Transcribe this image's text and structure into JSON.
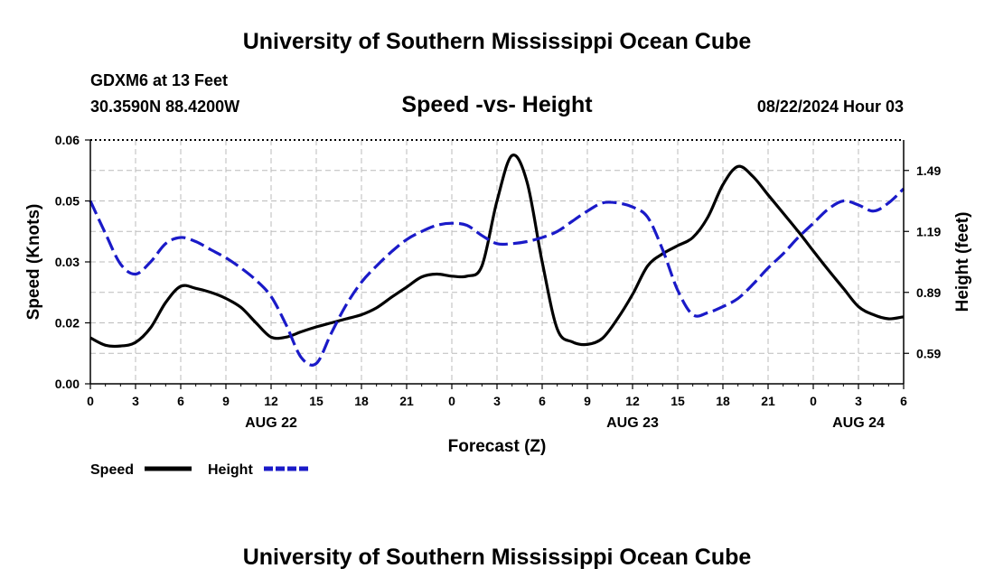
{
  "header": {
    "title": "University of Southern Mississippi Ocean Cube",
    "station": "GDXM6 at 13 Feet",
    "location": "30.3590N  88.4200W",
    "chart_title": "Speed -vs- Height",
    "datetime": "08/22/2024 Hour 03"
  },
  "footer": {
    "title": "University of Southern Mississippi Ocean Cube"
  },
  "legend": {
    "speed_label": "Speed",
    "height_label": "Height"
  },
  "colors": {
    "speed": "#000000",
    "height": "#1a1ac8",
    "grid": "#bbbbbb"
  },
  "chart_data": {
    "type": "line",
    "title": "Speed -vs- Height",
    "xlabel": "Forecast (Z)",
    "ylabel": "Speed (Knots)",
    "y2label": "Height (feet)",
    "x_range": [
      0,
      54
    ],
    "x_tick_labels": [
      "0",
      "3",
      "6",
      "9",
      "12",
      "15",
      "18",
      "21",
      "0",
      "3",
      "6",
      "9",
      "12",
      "15",
      "18",
      "21",
      "0",
      "3",
      "6"
    ],
    "date_labels": [
      {
        "text": "AUG 22",
        "x": 12
      },
      {
        "text": "AUG 23",
        "x": 36
      },
      {
        "text": "AUG 24",
        "x": 51
      }
    ],
    "ylim": [
      0,
      0.06
    ],
    "y_ticks": [
      {
        "value": 0,
        "label": "0.00"
      },
      {
        "value": 0.015,
        "label": "0.02"
      },
      {
        "value": 0.03,
        "label": "0.03"
      },
      {
        "value": 0.045,
        "label": "0.05"
      },
      {
        "value": 0.06,
        "label": "0.06"
      }
    ],
    "y2lim": [
      0.44,
      1.64
    ],
    "y2_ticks": [
      0.59,
      0.89,
      1.19,
      1.49
    ],
    "y2_tick_labels": [
      "0.59",
      "0.89",
      "1.19",
      "1.49"
    ],
    "grid": true,
    "series": [
      {
        "name": "Speed",
        "axis": "left",
        "style": "solid",
        "x": [
          0,
          1,
          2,
          3,
          4,
          5,
          6,
          7,
          8,
          9,
          10,
          11,
          12,
          13,
          14,
          15,
          16,
          17,
          18,
          19,
          20,
          21,
          22,
          23,
          24,
          25,
          26,
          27,
          28,
          29,
          30,
          31,
          32,
          33,
          34,
          35,
          36,
          37,
          38,
          39,
          40,
          41,
          42,
          43,
          44,
          45,
          46,
          47,
          48,
          49,
          50,
          51,
          52,
          53,
          54
        ],
        "values": [
          0.0113,
          0.0095,
          0.0093,
          0.0102,
          0.0138,
          0.02,
          0.024,
          0.0235,
          0.0225,
          0.021,
          0.0188,
          0.015,
          0.0115,
          0.0115,
          0.0128,
          0.014,
          0.015,
          0.016,
          0.017,
          0.0187,
          0.0213,
          0.0238,
          0.0263,
          0.027,
          0.0265,
          0.0265,
          0.029,
          0.045,
          0.0562,
          0.0496,
          0.03,
          0.0135,
          0.0103,
          0.0097,
          0.0112,
          0.016,
          0.022,
          0.029,
          0.032,
          0.034,
          0.036,
          0.041,
          0.049,
          0.0535,
          0.051,
          0.0465,
          0.042,
          0.0375,
          0.0327,
          0.028,
          0.0235,
          0.019,
          0.017,
          0.016,
          0.0165
        ]
      },
      {
        "name": "Height",
        "axis": "right",
        "style": "dashed",
        "x": [
          0,
          1,
          2,
          3,
          4,
          5,
          6,
          7,
          8,
          9,
          10,
          11,
          12,
          13,
          14,
          15,
          16,
          17,
          18,
          19,
          20,
          21,
          22,
          23,
          24,
          25,
          26,
          27,
          28,
          29,
          30,
          31,
          32,
          33,
          34,
          35,
          36,
          37,
          38,
          39,
          40,
          41,
          42,
          43,
          44,
          45,
          46,
          47,
          48,
          49,
          50,
          51,
          52,
          53,
          54
        ],
        "values": [
          1.34,
          1.18,
          1.03,
          0.98,
          1.04,
          1.13,
          1.16,
          1.14,
          1.1,
          1.06,
          1.01,
          0.95,
          0.87,
          0.73,
          0.57,
          0.54,
          0.69,
          0.83,
          0.94,
          1.02,
          1.09,
          1.15,
          1.19,
          1.22,
          1.23,
          1.22,
          1.17,
          1.13,
          1.13,
          1.14,
          1.16,
          1.19,
          1.24,
          1.29,
          1.33,
          1.33,
          1.31,
          1.26,
          1.1,
          0.9,
          0.78,
          0.79,
          0.82,
          0.86,
          0.93,
          1.01,
          1.08,
          1.16,
          1.23,
          1.3,
          1.34,
          1.32,
          1.29,
          1.33,
          1.4
        ]
      }
    ]
  }
}
